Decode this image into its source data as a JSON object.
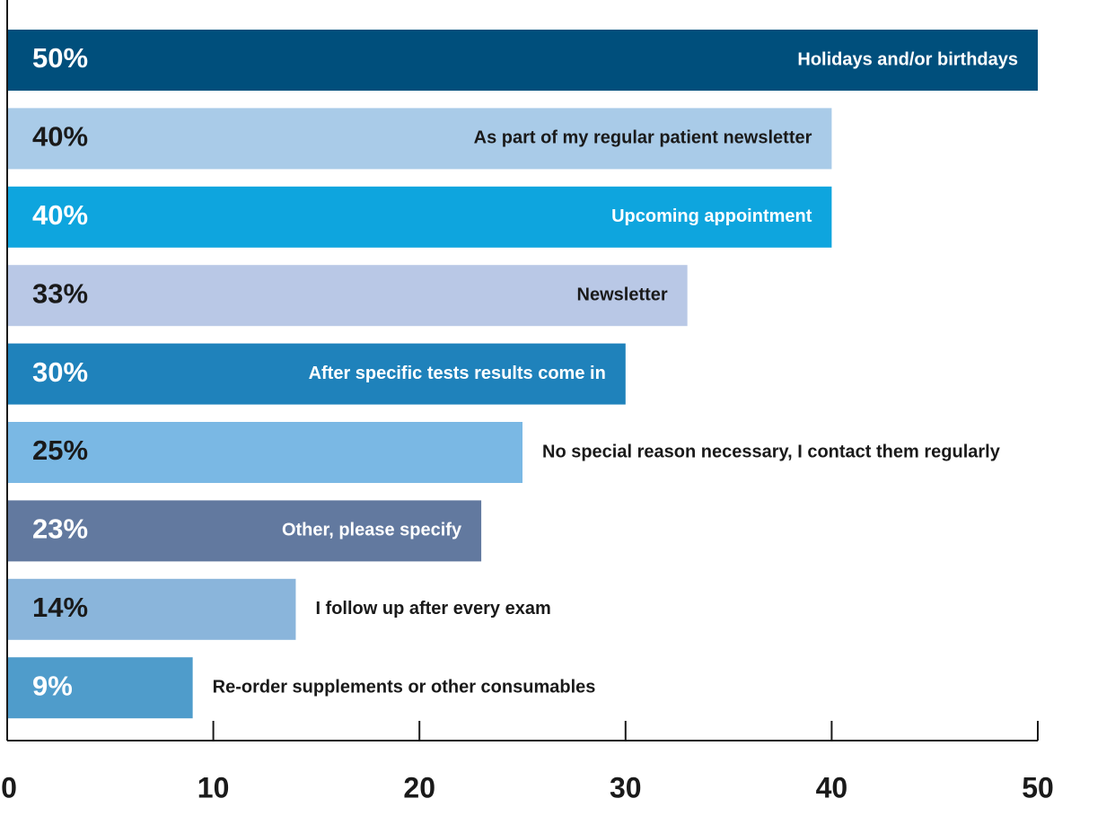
{
  "chart_data": {
    "type": "bar",
    "orientation": "horizontal",
    "categories": [
      "Holidays and/or birthdays",
      "As part of my regular patient newsletter",
      "Upcoming appointment",
      "Newsletter",
      "After specific tests results come in",
      "No special reason necessary, I contact them regularly",
      "Other, please specify",
      "I follow up after every exam",
      "Re-order supplements or other consumables"
    ],
    "values": [
      50,
      40,
      40,
      33,
      30,
      25,
      23,
      14,
      9
    ],
    "value_labels": [
      "50%",
      "40%",
      "40%",
      "33%",
      "30%",
      "25%",
      "23%",
      "14%",
      "9%"
    ],
    "colors": [
      "#004f7c",
      "#a9cbe8",
      "#0ea5de",
      "#b9c8e6",
      "#1f82bb",
      "#7ab8e4",
      "#62799f",
      "#8ab5db",
      "#4f9ccb"
    ],
    "xlim": [
      0,
      50
    ],
    "xticks": [
      0,
      10,
      20,
      30,
      40,
      50
    ]
  }
}
